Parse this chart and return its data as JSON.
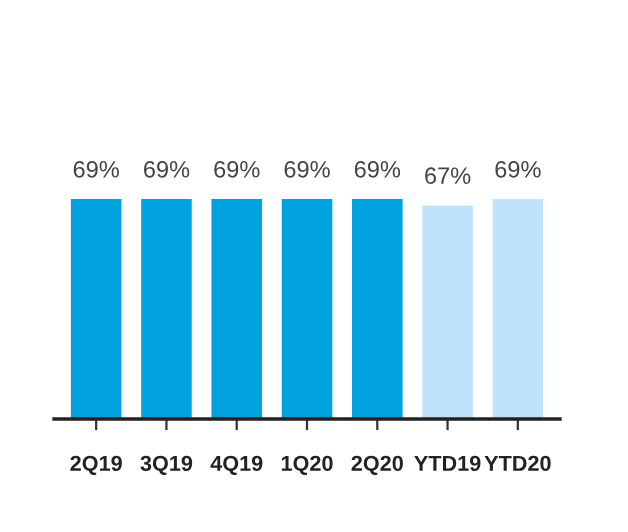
{
  "chart_data": {
    "type": "bar",
    "categories": [
      "2Q19",
      "3Q19",
      "4Q19",
      "1Q20",
      "2Q20",
      "YTD19",
      "YTD20"
    ],
    "values": [
      69,
      69,
      69,
      69,
      69,
      67,
      69
    ],
    "value_labels": [
      "69%",
      "69%",
      "69%",
      "69%",
      "69%",
      "67%",
      "69%"
    ],
    "colors": [
      "#00a3e0",
      "#00a3e0",
      "#00a3e0",
      "#00a3e0",
      "#00a3e0",
      "#bfe3fa",
      "#bfe3fa"
    ],
    "grid": false
  }
}
